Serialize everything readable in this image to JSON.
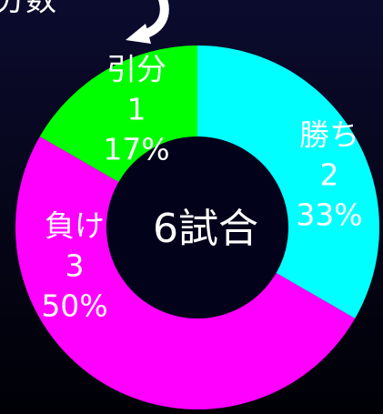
{
  "chart_data": {
    "type": "donut",
    "annotation": "分数",
    "center_label": "6試合",
    "categories": [
      "勝ち",
      "負け",
      "引分"
    ],
    "values": [
      2,
      3,
      1
    ],
    "percent_labels": [
      "33%",
      "50%",
      "17%"
    ],
    "colors": [
      "#00ffff",
      "#ff00ff",
      "#00ff00"
    ]
  }
}
